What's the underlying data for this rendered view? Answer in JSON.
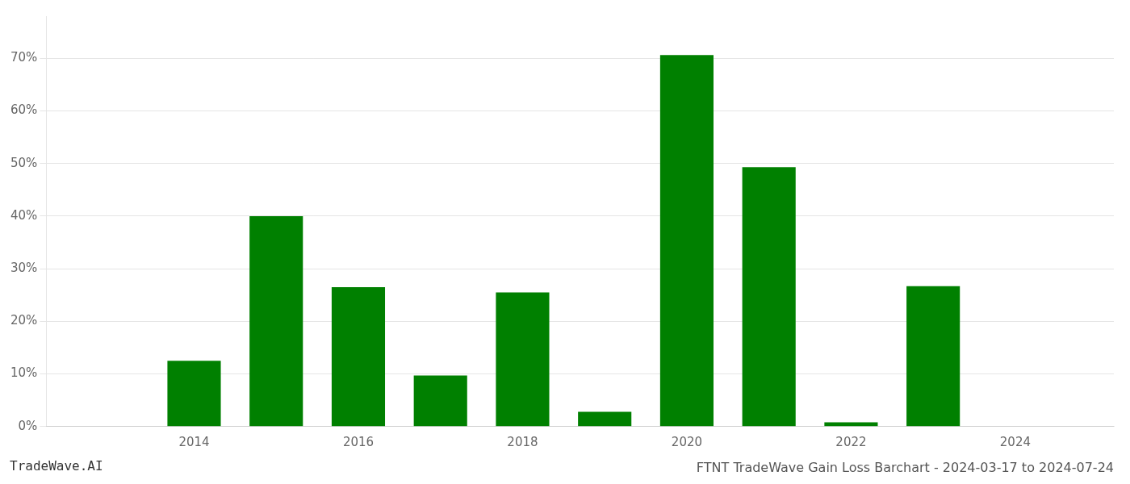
{
  "chart_data": {
    "type": "bar",
    "title": "FTNT TradeWave Gain Loss Barchart - 2024-03-17 to 2024-07-24",
    "annotations": [
      "TradeWave.AI"
    ],
    "x": [
      2013,
      2014,
      2015,
      2016,
      2017,
      2018,
      2019,
      2020,
      2021,
      2022,
      2023,
      2024
    ],
    "values": [
      0.0,
      0.125,
      0.4,
      0.265,
      0.097,
      0.255,
      0.028,
      0.706,
      0.493,
      0.008,
      0.267,
      0.0
    ],
    "color": "#008000",
    "xlim": [
      2012.2,
      2025.2
    ],
    "xticks": [
      2014,
      2016,
      2018,
      2020,
      2022,
      2024
    ],
    "ylim": [
      0,
      0.78
    ],
    "yticks": [
      {
        "value": 0.0,
        "label": "0%"
      },
      {
        "value": 0.1,
        "label": "10%"
      },
      {
        "value": 0.2,
        "label": "20%"
      },
      {
        "value": 0.3,
        "label": "30%"
      },
      {
        "value": 0.4,
        "label": "40%"
      },
      {
        "value": 0.5,
        "label": "50%"
      },
      {
        "value": 0.6,
        "label": "60%"
      },
      {
        "value": 0.7,
        "label": "70%"
      }
    ],
    "grid": "y"
  }
}
